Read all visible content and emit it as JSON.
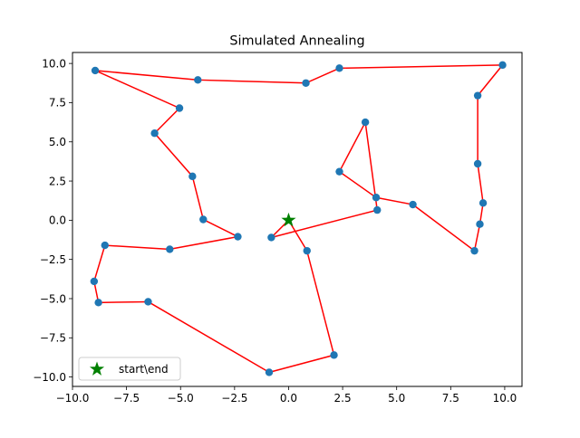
{
  "chart_data": {
    "type": "scatter",
    "title": "Simulated Annealing",
    "xlabel": "",
    "ylabel": "",
    "xlim": [
      -10.0,
      10.8
    ],
    "ylim": [
      -10.6,
      10.7
    ],
    "xticks": [
      -10.0,
      -7.5,
      -5.0,
      -2.5,
      0.0,
      2.5,
      5.0,
      7.5,
      10.0
    ],
    "xtick_labels": [
      "−10.0",
      "−7.5",
      "−5.0",
      "−2.5",
      "0.0",
      "2.5",
      "5.0",
      "7.5",
      "10.0"
    ],
    "yticks": [
      10.0,
      7.5,
      5.0,
      2.5,
      0.0,
      -2.5,
      -5.0,
      -7.5,
      -10.0
    ],
    "ytick_labels": [
      "10.0",
      "7.5",
      "5.0",
      "2.5",
      "0.0",
      "−2.5",
      "−5.0",
      "−7.5",
      "−10.0"
    ],
    "grid": false,
    "legend_position": "lower left",
    "route_color": "#ff0000",
    "point_color": "#1f77b4",
    "start_color": "#008000",
    "start": {
      "x": 0.0,
      "y": 0.0,
      "label": "start\\end"
    },
    "route": [
      {
        "x": 0.0,
        "y": 0.0
      },
      {
        "x": 0.85,
        "y": -1.95
      },
      {
        "x": 2.1,
        "y": -8.6
      },
      {
        "x": -0.9,
        "y": -9.7
      },
      {
        "x": -6.5,
        "y": -5.2
      },
      {
        "x": -8.8,
        "y": -5.25
      },
      {
        "x": -9.0,
        "y": -3.9
      },
      {
        "x": -8.5,
        "y": -1.6
      },
      {
        "x": -5.5,
        "y": -1.85
      },
      {
        "x": -2.35,
        "y": -1.05
      },
      {
        "x": -3.95,
        "y": 0.05
      },
      {
        "x": -4.45,
        "y": 2.8
      },
      {
        "x": -6.2,
        "y": 5.55
      },
      {
        "x": -5.05,
        "y": 7.15
      },
      {
        "x": -8.95,
        "y": 9.55
      },
      {
        "x": -4.2,
        "y": 8.95
      },
      {
        "x": 0.8,
        "y": 8.75
      },
      {
        "x": 2.35,
        "y": 9.7
      },
      {
        "x": 9.9,
        "y": 9.9
      },
      {
        "x": 8.75,
        "y": 7.95
      },
      {
        "x": 8.75,
        "y": 3.6
      },
      {
        "x": 9.0,
        "y": 1.1
      },
      {
        "x": 8.85,
        "y": -0.25
      },
      {
        "x": 8.6,
        "y": -1.95
      },
      {
        "x": 5.75,
        "y": 1.0
      },
      {
        "x": 4.05,
        "y": 1.45
      },
      {
        "x": 2.35,
        "y": 3.1
      },
      {
        "x": 3.55,
        "y": 6.25
      },
      {
        "x": 4.1,
        "y": 0.65
      },
      {
        "x": -0.8,
        "y": -1.1
      },
      {
        "x": 0.0,
        "y": 0.0
      }
    ]
  }
}
